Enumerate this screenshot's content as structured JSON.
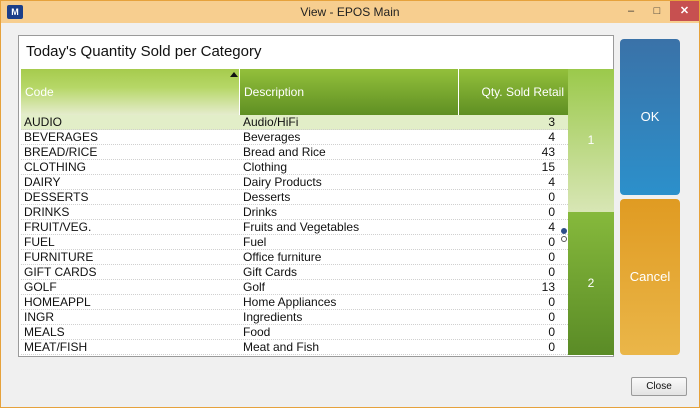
{
  "window": {
    "title": "View - EPOS Main",
    "icon": "app-logo-icon",
    "icon_text": "M",
    "controls": {
      "minimize": "–",
      "maximize": "□",
      "close": "✕"
    }
  },
  "panel": {
    "title": "Today's Quantity Sold per Category"
  },
  "table": {
    "columns": {
      "code": "Code",
      "description": "Description",
      "qty": "Qty. Sold Retail"
    },
    "sort": {
      "column": "code",
      "direction": "ascending",
      "icon": "sort-up-icon"
    },
    "selected_row": 0,
    "rows": [
      {
        "code": "AUDIO",
        "description": "Audio/HiFi",
        "qty": "3"
      },
      {
        "code": "BEVERAGES",
        "description": "Beverages",
        "qty": "4"
      },
      {
        "code": "BREAD/RICE",
        "description": "Bread and Rice",
        "qty": "43"
      },
      {
        "code": "CLOTHING",
        "description": "Clothing",
        "qty": "15"
      },
      {
        "code": "DAIRY",
        "description": "Dairy Products",
        "qty": "4"
      },
      {
        "code": "DESSERTS",
        "description": "Desserts",
        "qty": "0"
      },
      {
        "code": "DRINKS",
        "description": "Drinks",
        "qty": "0"
      },
      {
        "code": "FRUIT/VEG.",
        "description": "Fruits and Vegetables",
        "qty": "4"
      },
      {
        "code": "FUEL",
        "description": "Fuel",
        "qty": "0"
      },
      {
        "code": "FURNITURE",
        "description": "Office furniture",
        "qty": "0"
      },
      {
        "code": "GIFT CARDS",
        "description": "Gift Cards",
        "qty": "0"
      },
      {
        "code": "GOLF",
        "description": "Golf",
        "qty": "13"
      },
      {
        "code": "HOMEAPPL",
        "description": "Home Appliances",
        "qty": "0"
      },
      {
        "code": "INGR",
        "description": "Ingredients",
        "qty": "0"
      },
      {
        "code": "MEALS",
        "description": "Food",
        "qty": "0"
      },
      {
        "code": "MEAT/FISH",
        "description": "Meat and Fish",
        "qty": "0"
      }
    ]
  },
  "pager": {
    "pages": [
      "1",
      "2"
    ],
    "current_page": 1
  },
  "buttons": {
    "ok": "OK",
    "cancel": "Cancel",
    "close": "Close"
  },
  "colors": {
    "title_bar": "#f7ce8f",
    "header_green": "#7aab30",
    "ok_blue": "#3a72a8",
    "cancel_orange": "#e09b22",
    "close_red": "#c75050"
  }
}
